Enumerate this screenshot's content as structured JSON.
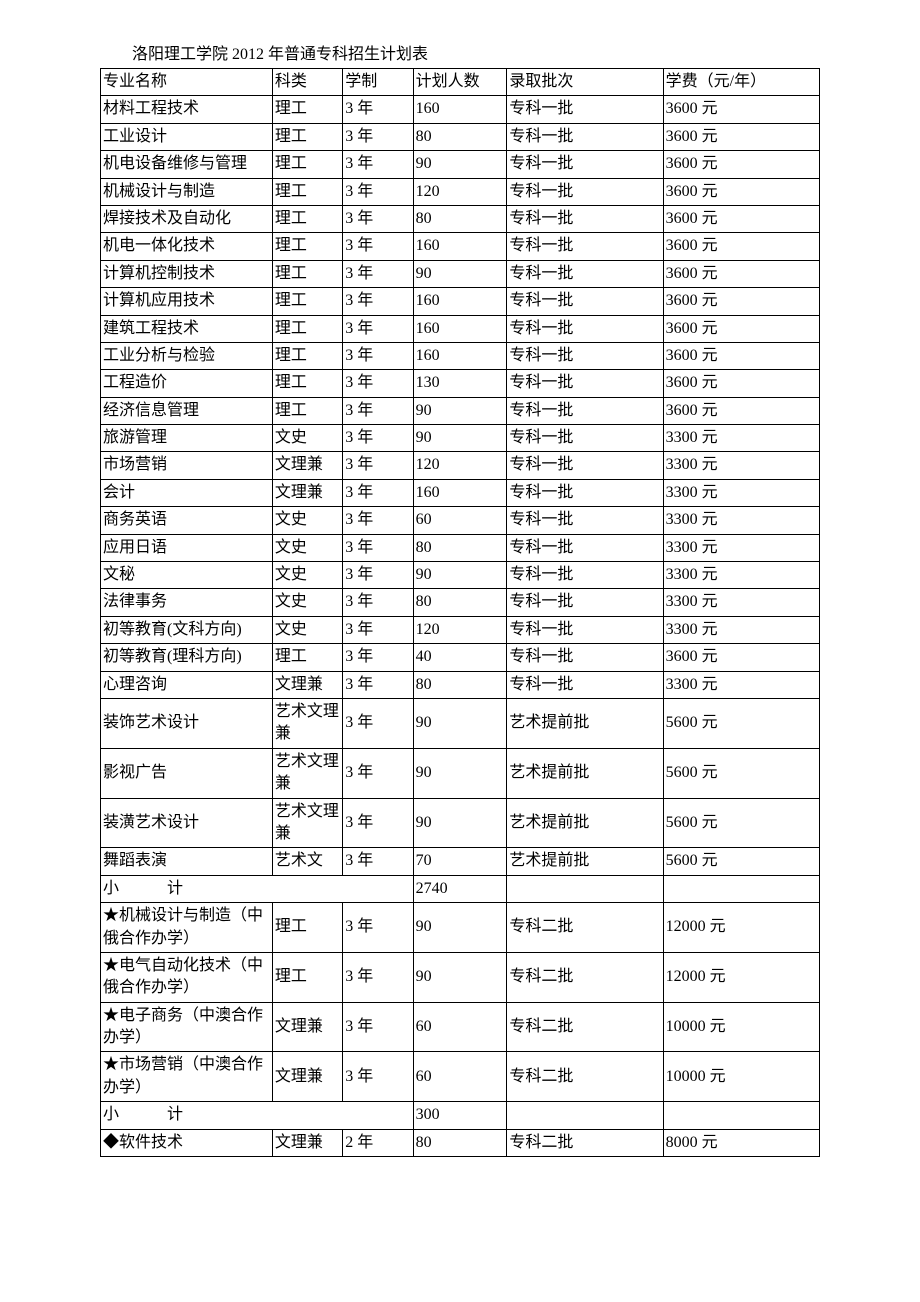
{
  "title": "洛阳理工学院 2012 年普通专科招生计划表",
  "columns": [
    "专业名称",
    "科类",
    "学制",
    "计划人数",
    "录取批次",
    "学费（元/年）"
  ],
  "rows": [
    [
      "材料工程技术",
      "理工",
      "3 年",
      "160",
      "专科一批",
      "3600 元"
    ],
    [
      "工业设计",
      "理工",
      "3 年",
      "80",
      "专科一批",
      "3600 元"
    ],
    [
      "机电设备维修与管理",
      "理工",
      "3 年",
      "90",
      "专科一批",
      "3600 元"
    ],
    [
      "机械设计与制造",
      "理工",
      "3 年",
      "120",
      "专科一批",
      "3600 元"
    ],
    [
      "焊接技术及自动化",
      "理工",
      "3 年",
      "80",
      "专科一批",
      "3600 元"
    ],
    [
      "机电一体化技术",
      "理工",
      "3 年",
      "160",
      "专科一批",
      "3600 元"
    ],
    [
      "计算机控制技术",
      "理工",
      "3 年",
      "90",
      "专科一批",
      "3600 元"
    ],
    [
      "计算机应用技术",
      "理工",
      "3 年",
      "160",
      "专科一批",
      "3600 元"
    ],
    [
      "建筑工程技术",
      "理工",
      "3 年",
      "160",
      "专科一批",
      "3600 元"
    ],
    [
      "工业分析与检验",
      "理工",
      "3 年",
      "160",
      "专科一批",
      "3600 元"
    ],
    [
      "工程造价",
      "理工",
      "3 年",
      "130",
      "专科一批",
      "3600 元"
    ],
    [
      "经济信息管理",
      "理工",
      "3 年",
      "90",
      "专科一批",
      "3600 元"
    ],
    [
      "旅游管理",
      "文史",
      "3 年",
      "90",
      "专科一批",
      "3300 元"
    ],
    [
      "市场营销",
      "文理兼",
      "3 年",
      "120",
      "专科一批",
      "3300 元"
    ],
    [
      "会计",
      "文理兼",
      "3 年",
      "160",
      "专科一批",
      "3300 元"
    ],
    [
      "商务英语",
      "文史",
      "3 年",
      "60",
      "专科一批",
      "3300 元"
    ],
    [
      "应用日语",
      "文史",
      "3 年",
      "80",
      "专科一批",
      "3300 元"
    ],
    [
      "文秘",
      "文史",
      "3 年",
      "90",
      "专科一批",
      "3300 元"
    ],
    [
      "法律事务",
      "文史",
      "3 年",
      "80",
      "专科一批",
      "3300 元"
    ],
    [
      "初等教育(文科方向)",
      "文史",
      "3 年",
      "120",
      "专科一批",
      "3300 元"
    ],
    [
      "初等教育(理科方向)",
      "理工",
      "3 年",
      "40",
      "专科一批",
      "3600 元"
    ],
    [
      "心理咨询",
      "文理兼",
      "3 年",
      "80",
      "专科一批",
      "3300 元"
    ],
    [
      "装饰艺术设计",
      "艺术文理兼",
      "3 年",
      "90",
      "艺术提前批",
      "5600 元"
    ],
    [
      "影视广告",
      "艺术文理兼",
      "3 年",
      "90",
      "艺术提前批",
      "5600 元"
    ],
    [
      "装潢艺术设计",
      "艺术文理兼",
      "3 年",
      "90",
      "艺术提前批",
      "5600 元"
    ],
    [
      "舞蹈表演",
      "艺术文",
      "3 年",
      "70",
      "艺术提前批",
      "5600 元"
    ]
  ],
  "subtotal1": {
    "label": "小　　　计",
    "value": "2740"
  },
  "rows2": [
    [
      "★机械设计与制造（中俄合作办学）",
      "理工",
      "3 年",
      "90",
      "专科二批",
      "12000 元"
    ],
    [
      "★电气自动化技术（中俄合作办学）",
      "理工",
      "3 年",
      "90",
      "专科二批",
      "12000 元"
    ],
    [
      "★电子商务（中澳合作办学）",
      "文理兼",
      "3 年",
      "60",
      "专科二批",
      "10000 元"
    ],
    [
      "★市场营销（中澳合作办学）",
      "文理兼",
      "3 年",
      "60",
      "专科二批",
      "10000 元"
    ]
  ],
  "subtotal2": {
    "label": "小　　　计",
    "value": "300"
  },
  "rows3": [
    [
      "◆软件技术",
      "文理兼",
      "2 年",
      "80",
      "专科二批",
      "8000 元"
    ]
  ]
}
